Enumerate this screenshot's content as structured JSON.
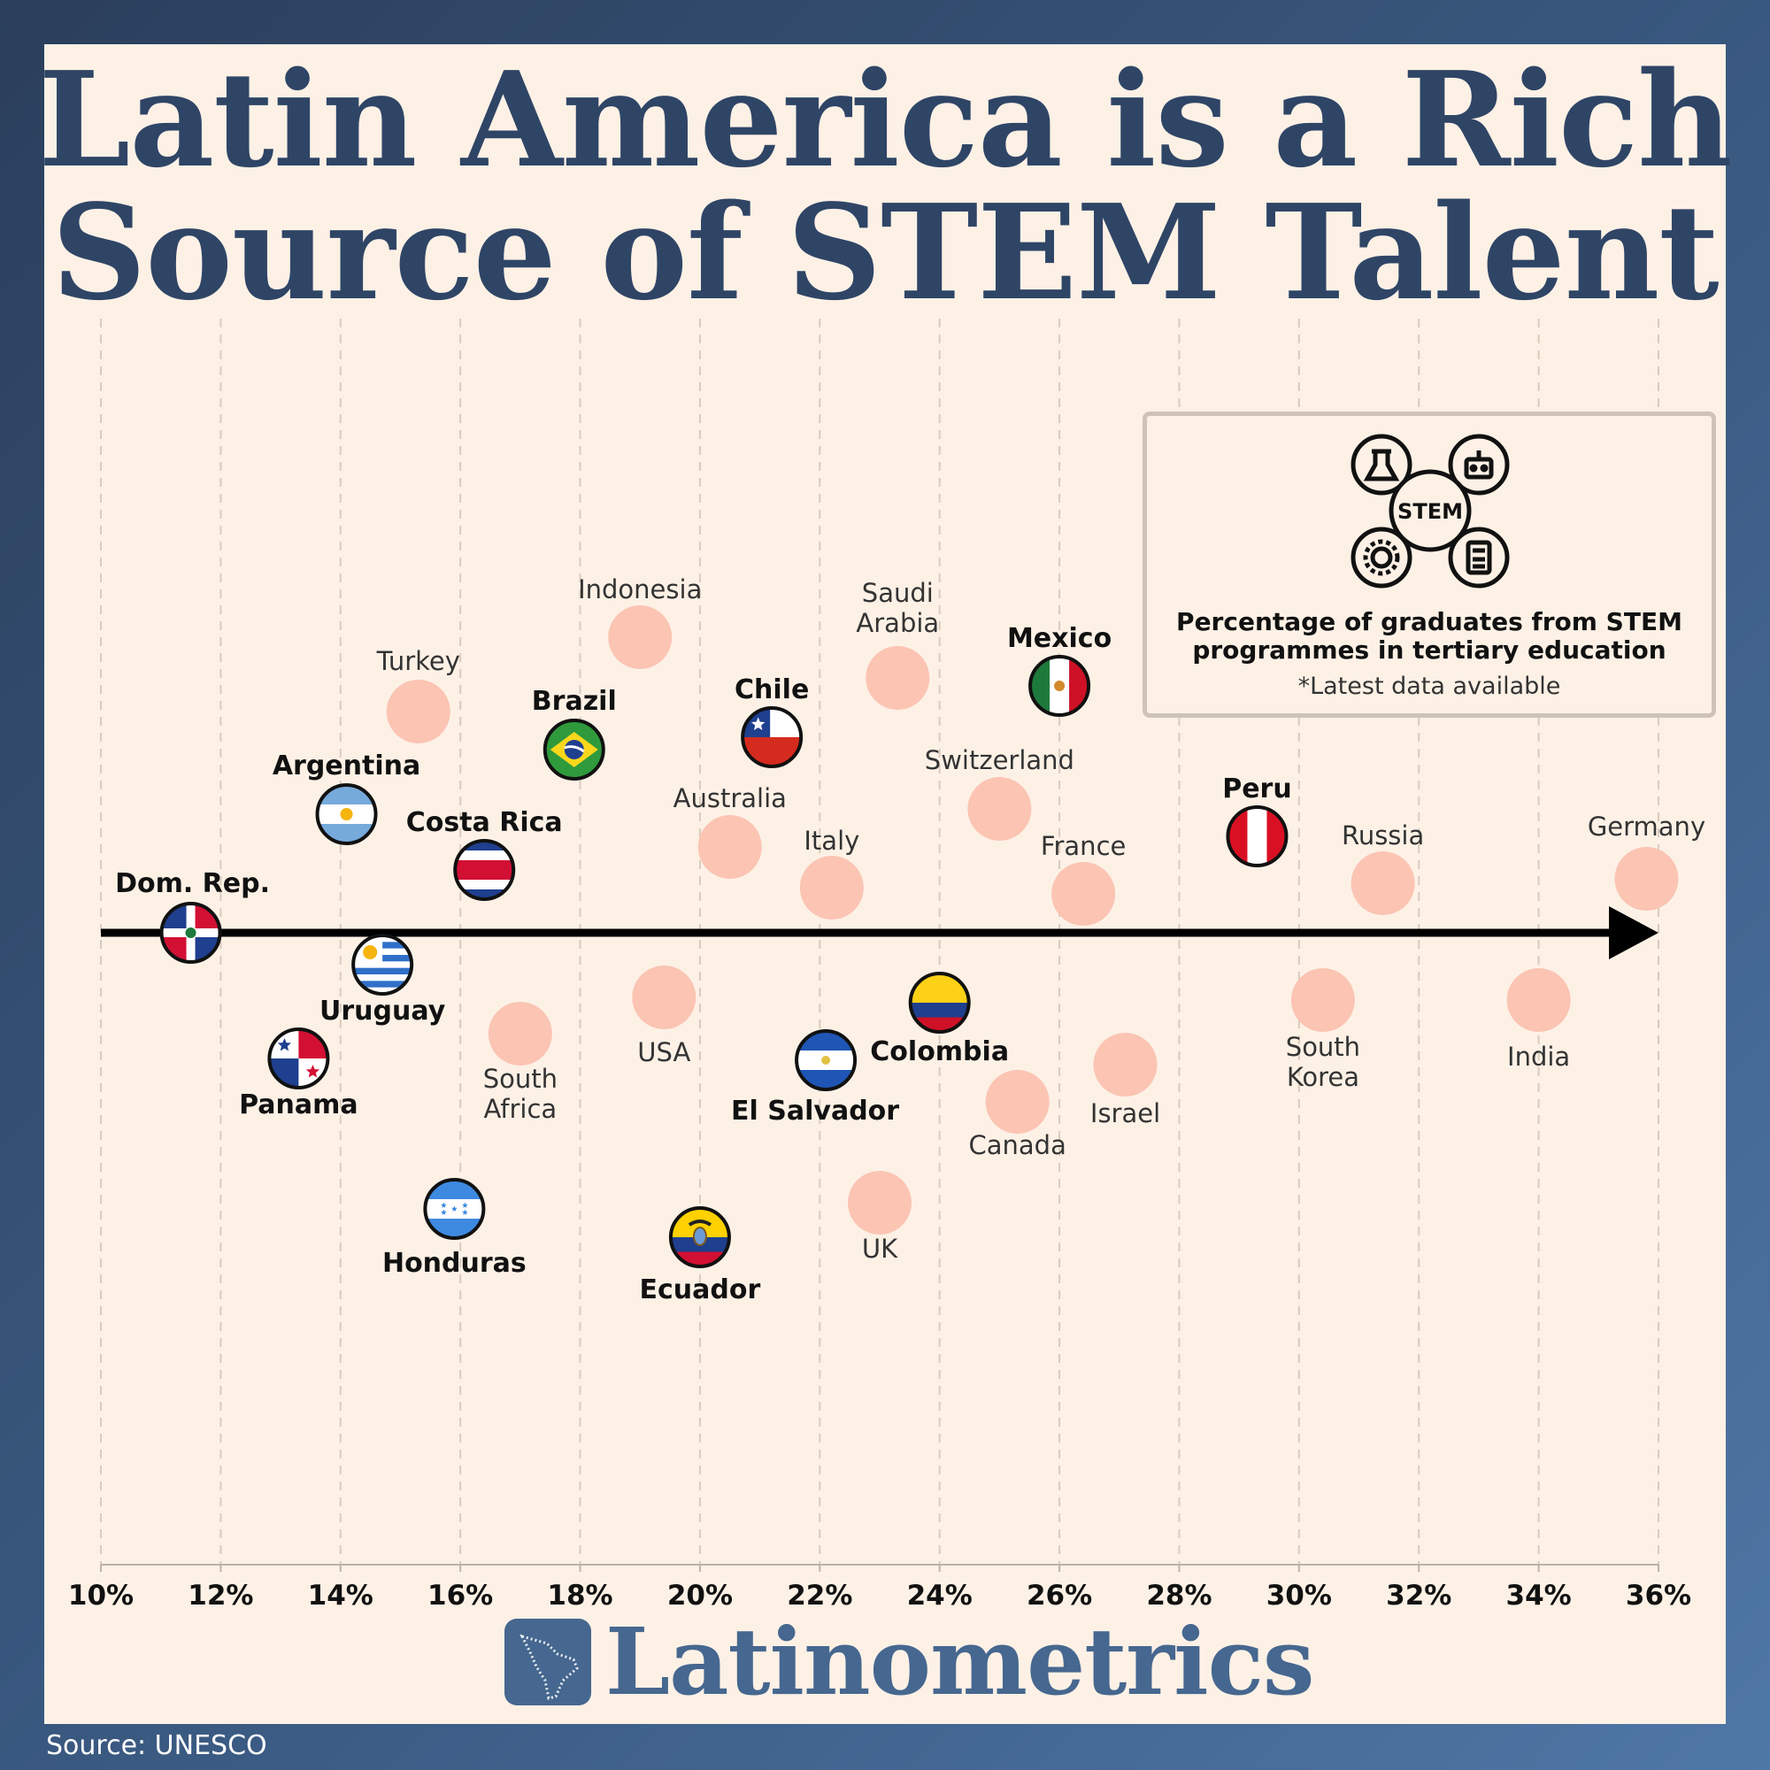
{
  "title_lines": [
    "Latin America is a Rich",
    "Source of STEM Talent"
  ],
  "legend": {
    "icon_label": "STEM",
    "title_lines": [
      "Percentage of graduates from STEM",
      "programmes in tertiary education"
    ],
    "note": "*Latest data available"
  },
  "brand": "Latinometrics",
  "source": "Source: UNESCO",
  "colors": {
    "background_dark": "#2b3f5c",
    "panel": "#fdf1e6",
    "title": "#2f4566",
    "other_country_dot": "#fbc4b3",
    "axis": "#000000",
    "brand": "#46678f"
  },
  "chart_data": {
    "type": "scatter",
    "x_axis": {
      "range": [
        10,
        36
      ],
      "ticks": [
        "10%",
        "12%",
        "14%",
        "16%",
        "18%",
        "20%",
        "22%",
        "24%",
        "26%",
        "28%",
        "30%",
        "32%",
        "34%",
        "36%"
      ],
      "grid": "vertical dashed"
    },
    "latin_america": [
      {
        "name": "Dom. Rep.",
        "value": 11.5,
        "flag": "dominican-republic"
      },
      {
        "name": "Panama",
        "value": 13.3,
        "flag": "panama"
      },
      {
        "name": "Argentina",
        "value": 14.1,
        "flag": "argentina"
      },
      {
        "name": "Uruguay",
        "value": 14.7,
        "flag": "uruguay"
      },
      {
        "name": "Honduras",
        "value": 15.9,
        "flag": "honduras"
      },
      {
        "name": "Costa Rica",
        "value": 16.4,
        "flag": "costa-rica"
      },
      {
        "name": "Brazil",
        "value": 17.9,
        "flag": "brazil"
      },
      {
        "name": "Ecuador",
        "value": 20.0,
        "flag": "ecuador"
      },
      {
        "name": "Chile",
        "value": 21.2,
        "flag": "chile"
      },
      {
        "name": "El Salvador",
        "value": 22.1,
        "flag": "el-salvador"
      },
      {
        "name": "Colombia",
        "value": 24.0,
        "flag": "colombia"
      },
      {
        "name": "Mexico",
        "value": 26.0,
        "flag": "mexico"
      },
      {
        "name": "Peru",
        "value": 29.3,
        "flag": "peru"
      }
    ],
    "other_countries": [
      {
        "name": "Turkey",
        "value": 15.3
      },
      {
        "name": "South Africa",
        "value": 17.0
      },
      {
        "name": "Indonesia",
        "value": 19.0
      },
      {
        "name": "USA",
        "value": 19.4
      },
      {
        "name": "Australia",
        "value": 20.5
      },
      {
        "name": "Italy",
        "value": 22.2
      },
      {
        "name": "UK",
        "value": 23.0
      },
      {
        "name": "Saudi Arabia",
        "value": 23.3
      },
      {
        "name": "Switzerland",
        "value": 25.0
      },
      {
        "name": "Canada",
        "value": 25.3
      },
      {
        "name": "France",
        "value": 26.4
      },
      {
        "name": "Israel",
        "value": 27.1
      },
      {
        "name": "South Korea",
        "value": 30.4
      },
      {
        "name": "Russia",
        "value": 31.4
      },
      {
        "name": "India",
        "value": 34.0
      },
      {
        "name": "Germany",
        "value": 35.8
      }
    ]
  }
}
